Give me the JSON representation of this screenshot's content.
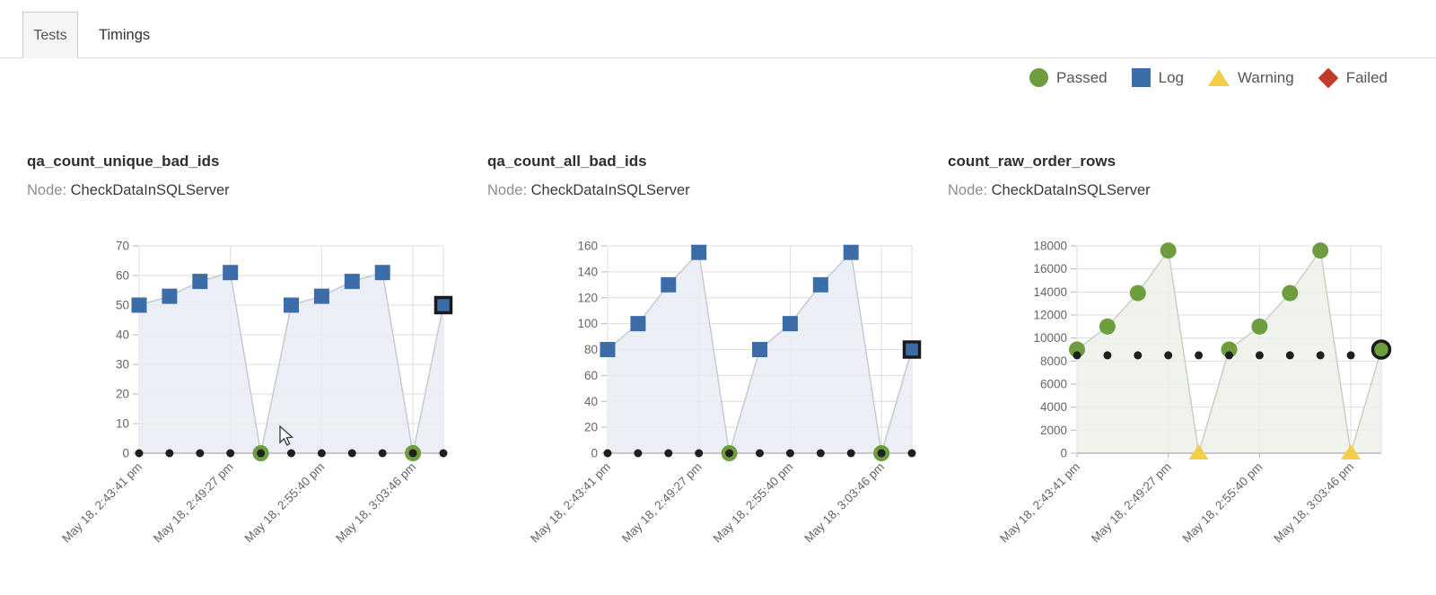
{
  "tabs": {
    "items": [
      {
        "label": "Tests",
        "active": true
      },
      {
        "label": "Timings",
        "active": false
      }
    ]
  },
  "legend": {
    "items": [
      {
        "label": "Passed",
        "shape": "circle",
        "color": "#6d9d3f"
      },
      {
        "label": "Log",
        "shape": "square",
        "color": "#3d6da8"
      },
      {
        "label": "Warning",
        "shape": "triangle",
        "color": "#f5cd4b"
      },
      {
        "label": "Failed",
        "shape": "diamond",
        "color": "#c23a28"
      }
    ]
  },
  "colors": {
    "passed": "#6d9d3f",
    "log": "#3d6da8",
    "warning": "#f5cd4b",
    "failed": "#c23a28",
    "dot": "#1f1f1f",
    "highlight": "#1a1a1a",
    "gridline": "#dcdcdc",
    "axis": "#9a9a9a",
    "tick": "#b5b5b5",
    "tick_label": "#666666"
  },
  "chart_data": [
    {
      "type": "area",
      "title": "qa_count_unique_bad_ids",
      "node_label": "Node:",
      "node_name": "CheckDataInSQLServer",
      "ylim": [
        0,
        70
      ],
      "y_ticks": [
        0,
        10,
        20,
        30,
        40,
        50,
        60,
        70
      ],
      "x_labels": [
        "May 18, 2:43:41 pm",
        "May 18, 2:49:27 pm",
        "May 18, 2:55:40 pm",
        "May 18, 3:03:46 pm"
      ],
      "x_label_indices": [
        0,
        3,
        6,
        9
      ],
      "area_color": "#e9ecf3",
      "line_color": "#c7cad1",
      "highlight_last_point": true,
      "series": [
        {
          "name": "test-result",
          "fill": true,
          "values": [
            50,
            53,
            58,
            61,
            0,
            50,
            53,
            58,
            61,
            0,
            50
          ],
          "markers": [
            "log",
            "log",
            "log",
            "log",
            "passed",
            "log",
            "log",
            "log",
            "log",
            "passed",
            "log"
          ]
        },
        {
          "name": "baseline-dots",
          "fill": false,
          "values": [
            0,
            0,
            0,
            0,
            0,
            0,
            0,
            0,
            0,
            0,
            0
          ],
          "markers": [
            "dot",
            "dot",
            "dot",
            "dot",
            "dot",
            "dot",
            "dot",
            "dot",
            "dot",
            "dot",
            "dot"
          ]
        }
      ]
    },
    {
      "type": "area",
      "title": "qa_count_all_bad_ids",
      "node_label": "Node:",
      "node_name": "CheckDataInSQLServer",
      "ylim": [
        0,
        160
      ],
      "y_ticks": [
        0,
        20,
        40,
        60,
        80,
        100,
        120,
        140,
        160
      ],
      "x_labels": [
        "May 18, 2:43:41 pm",
        "May 18, 2:49:27 pm",
        "May 18, 2:55:40 pm",
        "May 18, 3:03:46 pm"
      ],
      "x_label_indices": [
        0,
        3,
        6,
        9
      ],
      "area_color": "#e9ecf3",
      "line_color": "#c7cad1",
      "highlight_last_point": true,
      "series": [
        {
          "name": "test-result",
          "fill": true,
          "values": [
            80,
            100,
            130,
            155,
            0,
            80,
            100,
            130,
            155,
            0,
            80
          ],
          "markers": [
            "log",
            "log",
            "log",
            "log",
            "passed",
            "log",
            "log",
            "log",
            "log",
            "passed",
            "log"
          ]
        },
        {
          "name": "baseline-dots",
          "fill": false,
          "values": [
            0,
            0,
            0,
            0,
            0,
            0,
            0,
            0,
            0,
            0,
            0
          ],
          "markers": [
            "dot",
            "dot",
            "dot",
            "dot",
            "dot",
            "dot",
            "dot",
            "dot",
            "dot",
            "dot",
            "dot"
          ]
        }
      ]
    },
    {
      "type": "area",
      "title": "count_raw_order_rows",
      "node_label": "Node:",
      "node_name": "CheckDataInSQLServer",
      "ylim": [
        0,
        18000
      ],
      "y_ticks": [
        0,
        2000,
        4000,
        6000,
        8000,
        10000,
        12000,
        14000,
        16000,
        18000
      ],
      "x_labels": [
        "May 18, 2:43:41 pm",
        "May 18, 2:49:27 pm",
        "May 18, 2:55:40 pm",
        "May 18, 3:03:46 pm"
      ],
      "x_label_indices": [
        0,
        3,
        6,
        9
      ],
      "area_color": "#edf1e7",
      "line_color": "#c9cfc4",
      "highlight_last_point": true,
      "series": [
        {
          "name": "test-result",
          "fill": true,
          "values": [
            9000,
            11000,
            13900,
            17600,
            0,
            9000,
            11000,
            13900,
            17600,
            0,
            9000
          ],
          "markers": [
            "passed",
            "passed",
            "passed",
            "passed",
            "warning",
            "passed",
            "passed",
            "passed",
            "passed",
            "warning",
            "passed"
          ]
        },
        {
          "name": "threshold-dots",
          "fill": false,
          "values": [
            8500,
            8500,
            8500,
            8500,
            8500,
            8500,
            8500,
            8500,
            8500,
            8500,
            8500
          ],
          "markers": [
            "dot",
            "dot",
            "dot",
            "dot",
            "dot",
            "dot",
            "dot",
            "dot",
            "dot",
            "dot",
            "dot"
          ]
        }
      ]
    }
  ]
}
